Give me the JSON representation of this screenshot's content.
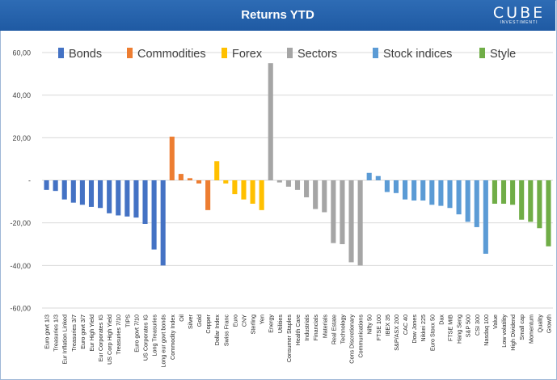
{
  "header": {
    "title": "Returns YTD",
    "logo_main": "CUBE",
    "logo_sub": "INVESTIMENTI",
    "bg_color": "#1f5aa3"
  },
  "chart_data": {
    "type": "bar",
    "title": "Returns YTD",
    "xlabel": "",
    "ylabel": "",
    "ylim": [
      -60,
      60
    ],
    "yticks": [
      60,
      40,
      20,
      0,
      -20,
      -40,
      -60
    ],
    "ytick_labels": [
      "60,00",
      "40,00",
      "20,00",
      "-",
      "-20,00",
      "-40,00",
      "-60,00"
    ],
    "grid": "horizontal",
    "legend_position": "top",
    "groups": [
      {
        "name": "Bonds",
        "color": "#4472c4"
      },
      {
        "name": "Commodities",
        "color": "#ed7d31"
      },
      {
        "name": "Forex",
        "color": "#ffc000"
      },
      {
        "name": "Sectors",
        "color": "#a5a5a5"
      },
      {
        "name": "Stock indices",
        "color": "#5b9bd5"
      },
      {
        "name": "Style",
        "color": "#70ad47"
      }
    ],
    "categories": [
      "Euro govt 1/3",
      "Treasuries 1/3",
      "Eur Inflation Linked",
      "Treasuries 3/7",
      "Euro govt 3/7",
      "Eur High Yield",
      "Eur Corporates IG",
      "US Corp High Yield",
      "Treasuries 7/10",
      "TIPS",
      "Euro govt 7/10",
      "US Corporates IG",
      "Long Treasuries",
      "Long eur govt bonds",
      "Commodity Index",
      "Oil",
      "Silver",
      "Gold",
      "Copper",
      "Dollar Index",
      "Swiss Franc",
      "Euro",
      "CNY",
      "Sterling",
      "Yen",
      "Energy",
      "Utilities",
      "Consumer Staples",
      "Health Care",
      "Industrials",
      "Financials",
      "Materials",
      "Real Estate",
      "Technology",
      "Cons Discretionary",
      "Communications",
      "Nifty 50",
      "FTSE 100",
      "IBEX 35",
      "S&P/ASX 200",
      "CAC 40",
      "Dow Jones",
      "Nikkei 225",
      "Euro Stoxx 50",
      "Dax",
      "FTSE MIB",
      "Hang Seng",
      "S&P 500",
      "CSI 300",
      "Nasdaq 100",
      "Value",
      "Low volatility",
      "High Dividend",
      "Small cap",
      "Momentum",
      "Quality",
      "Growth"
    ],
    "group_index": [
      0,
      0,
      0,
      0,
      0,
      0,
      0,
      0,
      0,
      0,
      0,
      0,
      0,
      0,
      1,
      1,
      1,
      1,
      1,
      2,
      2,
      2,
      2,
      2,
      2,
      3,
      3,
      3,
      3,
      3,
      3,
      3,
      3,
      3,
      3,
      3,
      4,
      4,
      4,
      4,
      4,
      4,
      4,
      4,
      4,
      4,
      4,
      4,
      4,
      4,
      5,
      5,
      5,
      5,
      5,
      5,
      5
    ],
    "values": [
      -4.5,
      -5,
      -9,
      -10.5,
      -11.5,
      -12.5,
      -13,
      -15.5,
      -16.5,
      -17,
      -17.5,
      -20.5,
      -32.5,
      -40,
      20.5,
      3,
      1,
      -1.5,
      -14,
      9,
      -1.5,
      -6.5,
      -9,
      -11,
      -14,
      55,
      -1,
      -3,
      -4.5,
      -8,
      -13.5,
      -15,
      -29.5,
      -30,
      -38.5,
      -40,
      3.5,
      2,
      -5.5,
      -6,
      -9,
      -9.5,
      -9.5,
      -11.5,
      -12,
      -13,
      -16,
      -19.5,
      -22,
      -34.5,
      -11,
      -11,
      -11.5,
      -18.5,
      -19.5,
      -22.5,
      -31
    ]
  }
}
